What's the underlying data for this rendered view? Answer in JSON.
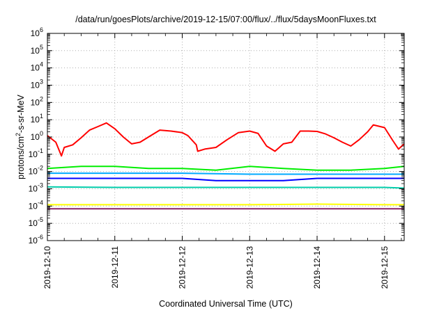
{
  "chart_data": {
    "type": "line",
    "title": "/data/run/goesPlots/archive/2019-12-15/07:00/flux/../flux/5daysMoonFluxes.txt",
    "xlabel": "Coordinated Universal Time (UTC)",
    "ylabel": {
      "prefix": "protons/cm",
      "sup": "2",
      "suffix": "-s-sr-MeV"
    },
    "yscale": "log",
    "ylim": [
      1e-06,
      1000000.0
    ],
    "y_ticks": [
      {
        "base": "10",
        "exp": "6",
        "value": 1000000.0
      },
      {
        "base": "10",
        "exp": "5",
        "value": 100000.0
      },
      {
        "base": "10",
        "exp": "4",
        "value": 10000.0
      },
      {
        "base": "10",
        "exp": "3",
        "value": 1000.0
      },
      {
        "base": "10",
        "exp": "2",
        "value": 100.0
      },
      {
        "base": "10",
        "exp": "1",
        "value": 10.0
      },
      {
        "base": "10",
        "exp": "0",
        "value": 1.0
      },
      {
        "base": "10",
        "exp": "-1",
        "value": 0.1
      },
      {
        "base": "10",
        "exp": "-2",
        "value": 0.01
      },
      {
        "base": "10",
        "exp": "-3",
        "value": 0.001
      },
      {
        "base": "10",
        "exp": "-4",
        "value": 0.0001
      },
      {
        "base": "10",
        "exp": "-5",
        "value": 1e-05
      },
      {
        "base": "10",
        "exp": "-6",
        "value": 1e-06
      }
    ],
    "xlim": [
      "2019-12-10",
      "2019-12-15 07:00"
    ],
    "x_ticks": [
      "2019-12-10",
      "2019-12-11",
      "2019-12-12",
      "2019-12-13",
      "2019-12-14",
      "2019-12-15"
    ],
    "grid": true,
    "legend": "none",
    "series": [
      {
        "color": "#ff0000",
        "x": [
          "2019-12-10 00:00",
          "2019-12-10 03:00",
          "2019-12-10 05:00",
          "2019-12-10 06:00",
          "2019-12-10 09:00",
          "2019-12-10 12:00",
          "2019-12-10 15:00",
          "2019-12-10 18:00",
          "2019-12-10 21:00",
          "2019-12-11 00:00",
          "2019-12-11 03:00",
          "2019-12-11 06:00",
          "2019-12-11 09:00",
          "2019-12-11 12:00",
          "2019-12-11 16:00",
          "2019-12-11 20:00",
          "2019-12-12 00:00",
          "2019-12-12 02:00",
          "2019-12-12 05:00",
          "2019-12-12 05:30",
          "2019-12-12 08:00",
          "2019-12-12 12:00",
          "2019-12-12 16:00",
          "2019-12-12 20:00",
          "2019-12-13 00:00",
          "2019-12-13 03:00",
          "2019-12-13 06:00",
          "2019-12-13 09:00",
          "2019-12-13 12:00",
          "2019-12-13 15:00",
          "2019-12-13 18:00",
          "2019-12-13 21:00",
          "2019-12-14 00:00",
          "2019-12-14 03:00",
          "2019-12-14 06:00",
          "2019-12-14 09:00",
          "2019-12-14 12:00",
          "2019-12-14 15:00",
          "2019-12-14 18:00",
          "2019-12-14 20:00",
          "2019-12-15 00:00",
          "2019-12-15 03:00",
          "2019-12-15 05:00",
          "2019-12-15 07:00"
        ],
        "values": [
          1.2,
          0.5,
          0.08,
          0.25,
          0.35,
          0.9,
          2.5,
          4,
          6.5,
          3,
          1,
          0.4,
          0.5,
          1,
          2.5,
          2.2,
          1.8,
          1.2,
          0.35,
          0.15,
          0.2,
          0.25,
          0.7,
          1.8,
          2.2,
          1.6,
          0.3,
          0.15,
          0.4,
          0.5,
          2.2,
          2.2,
          2.1,
          1.5,
          0.9,
          0.5,
          0.3,
          0.7,
          2,
          5,
          3.5,
          0.6,
          0.2,
          0.4
        ]
      },
      {
        "color": "#00ee00",
        "x": [
          "2019-12-10 00:00",
          "2019-12-10 12:00",
          "2019-12-11 00:00",
          "2019-12-11 12:00",
          "2019-12-12 00:00",
          "2019-12-12 12:00",
          "2019-12-13 00:00",
          "2019-12-13 12:00",
          "2019-12-14 00:00",
          "2019-12-14 12:00",
          "2019-12-15 00:00",
          "2019-12-15 07:00"
        ],
        "values": [
          0.015,
          0.02,
          0.02,
          0.015,
          0.015,
          0.012,
          0.02,
          0.015,
          0.012,
          0.012,
          0.015,
          0.02
        ]
      },
      {
        "color": "#00aaff",
        "x": [
          "2019-12-10 00:00",
          "2019-12-11 00:00",
          "2019-12-12 00:00",
          "2019-12-13 00:00",
          "2019-12-14 00:00",
          "2019-12-15 00:00",
          "2019-12-15 07:00"
        ],
        "values": [
          0.008,
          0.008,
          0.008,
          0.007,
          0.007,
          0.007,
          0.007
        ]
      },
      {
        "color": "#0000ff",
        "x": [
          "2019-12-10 00:00",
          "2019-12-10 12:00",
          "2019-12-11 00:00",
          "2019-12-11 12:00",
          "2019-12-12 00:00",
          "2019-12-12 12:00",
          "2019-12-13 00:00",
          "2019-12-13 12:00",
          "2019-12-14 00:00",
          "2019-12-14 12:00",
          "2019-12-15 00:00",
          "2019-12-15 07:00"
        ],
        "values": [
          0.004,
          0.004,
          0.004,
          0.004,
          0.004,
          0.003,
          0.003,
          0.003,
          0.004,
          0.004,
          0.004,
          0.004
        ]
      },
      {
        "color": "#00ccaa",
        "x": [
          "2019-12-10 00:00",
          "2019-12-11 00:00",
          "2019-12-12 00:00",
          "2019-12-13 00:00",
          "2019-12-14 00:00",
          "2019-12-15 00:00",
          "2019-12-15 07:00"
        ],
        "values": [
          0.0013,
          0.0012,
          0.0012,
          0.0012,
          0.0012,
          0.0012,
          0.0011
        ]
      },
      {
        "color": "#ffff00",
        "x": [
          "2019-12-10 00:00",
          "2019-12-11 00:00",
          "2019-12-12 00:00",
          "2019-12-13 00:00",
          "2019-12-14 00:00",
          "2019-12-15 00:00",
          "2019-12-15 07:00"
        ],
        "values": [
          0.00012,
          0.00012,
          0.00012,
          0.00012,
          0.00013,
          0.00012,
          0.00012
        ]
      },
      {
        "color": "#882266",
        "x": [
          "2019-12-10 00:00",
          "2019-12-11 00:00",
          "2019-12-12 00:00",
          "2019-12-13 00:00",
          "2019-12-14 00:00",
          "2019-12-15 00:00",
          "2019-12-15 07:00"
        ],
        "values": [
          7e-05,
          7e-05,
          7e-05,
          7e-05,
          7e-05,
          7e-05,
          7e-05
        ]
      }
    ]
  }
}
